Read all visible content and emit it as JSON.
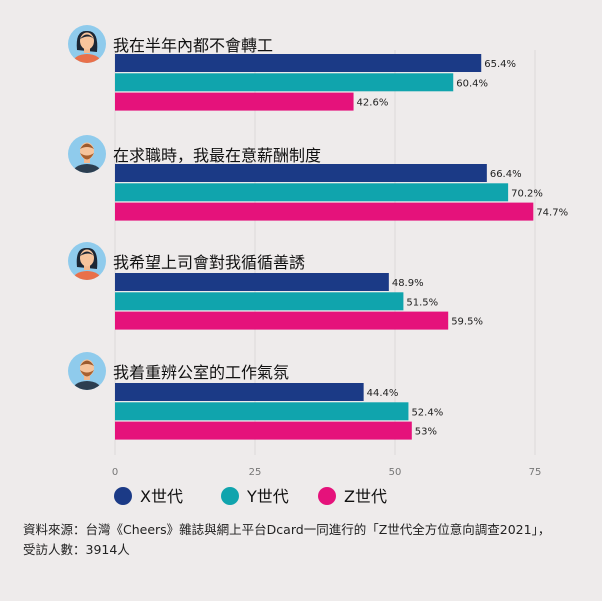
{
  "chart_data": {
    "type": "bar",
    "orientation": "horizontal",
    "categories": [
      "我在半年內都不會轉工",
      "在求職時，我最在意薪酬制度",
      "我希望上司會對我循循善誘",
      "我着重辨公室的工作氣氛"
    ],
    "category_icons": [
      "woman-avatar-icon",
      "man-avatar-icon",
      "woman-avatar-icon",
      "man-avatar-icon"
    ],
    "series": [
      {
        "name": "X世代",
        "color": "#1b3a86",
        "values": [
          65.4,
          66.4,
          48.9,
          44.4
        ],
        "labels": [
          "65.4%",
          "66.4%",
          "48.9%",
          "44.4%"
        ]
      },
      {
        "name": "Y世代",
        "color": "#10a4ad",
        "values": [
          60.4,
          70.2,
          51.5,
          52.4
        ],
        "labels": [
          "60.4%",
          "70.2%",
          "51.5%",
          "52.4%"
        ]
      },
      {
        "name": "Z世代",
        "color": "#e5127b",
        "values": [
          42.6,
          74.7,
          59.5,
          53
        ],
        "labels": [
          "42.6%",
          "74.7%",
          "59.5%",
          "53%"
        ]
      }
    ],
    "xlim": [
      0,
      75
    ],
    "xticks": [
      "0",
      "25",
      "50",
      "75"
    ],
    "grid": true,
    "legend": "bottom"
  },
  "footer": {
    "line1": "資料來源：台灣《Cheers》雜誌與網上平台Dcard一同進行的「Z世代全方位意向調查2021」，",
    "line2": "受訪人數：3914人"
  }
}
